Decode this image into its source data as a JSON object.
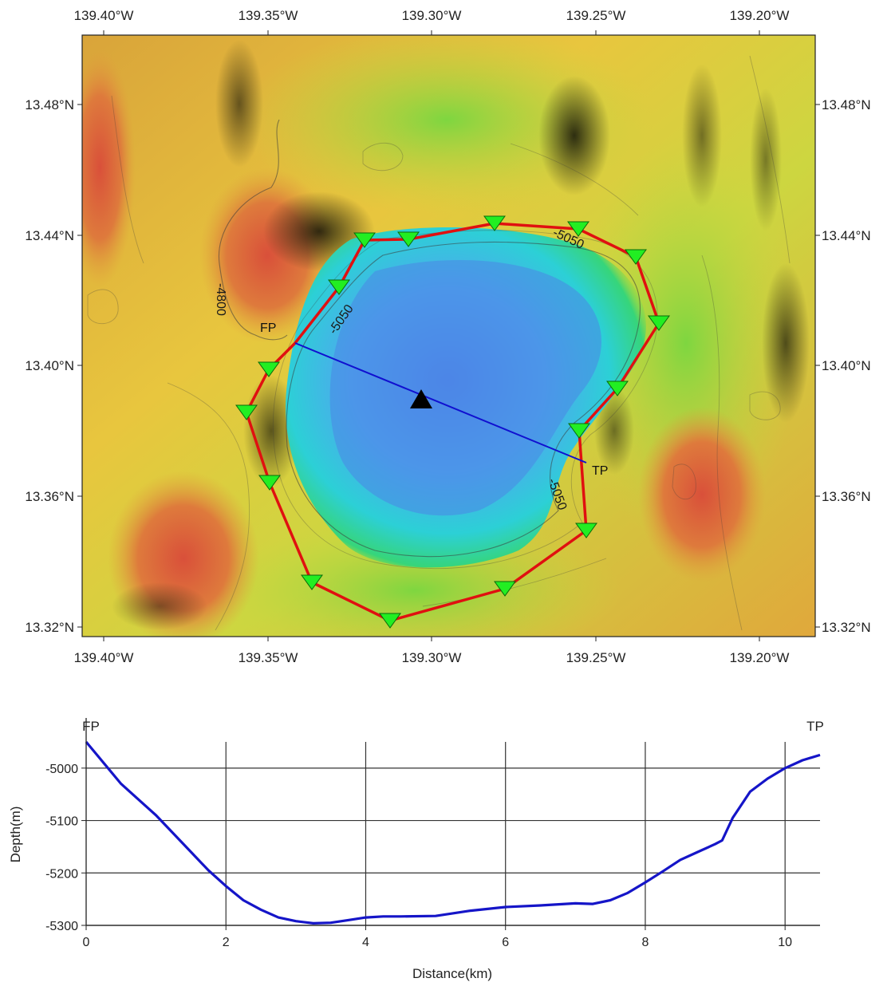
{
  "map": {
    "lon_ticks": [
      "139.40°W",
      "139.35°W",
      "139.30°W",
      "139.25°W",
      "139.20°W"
    ],
    "lat_ticks": [
      "13.48°N",
      "13.44°N",
      "13.40°N",
      "13.36°N",
      "13.32°N"
    ],
    "contour_labels": [
      "-4800",
      "-5050",
      "-5050",
      "-5050"
    ],
    "profile_start_label": "FP",
    "profile_end_label": "TP",
    "colors": {
      "survey_line": "#e01010",
      "station_marker": "#22ee22",
      "profile_line": "#1010d0",
      "center_marker": "#000000",
      "deep_basin": "#4a88e6",
      "high_relief": "#d95a3a"
    },
    "station_count": 16
  },
  "chart_data": {
    "type": "line",
    "title": "",
    "xlabel": "Distance(km)",
    "ylabel": "Depth(m)",
    "xlim": [
      0,
      10.5
    ],
    "ylim": [
      -5300,
      -4950
    ],
    "x_ticks": [
      "0",
      "2",
      "4",
      "6",
      "8",
      "10"
    ],
    "y_ticks": [
      "-5000",
      "-5100",
      "-5200",
      "-5300"
    ],
    "start_label": "FP",
    "end_label": "TP",
    "grid": true,
    "series": [
      {
        "color": "#1515c8",
        "x": [
          0,
          0.25,
          0.5,
          0.75,
          1.0,
          1.25,
          1.5,
          1.75,
          2.0,
          2.25,
          2.5,
          2.75,
          3.0,
          3.25,
          3.5,
          3.75,
          4.0,
          4.25,
          4.5,
          5.0,
          5.5,
          6.0,
          6.5,
          7.0,
          7.25,
          7.5,
          7.75,
          8.0,
          8.25,
          8.5,
          8.75,
          9.0,
          9.1,
          9.25,
          9.5,
          9.75,
          10.0,
          10.25,
          10.5
        ],
        "y": [
          -4950,
          -4990,
          -5030,
          -5060,
          -5090,
          -5125,
          -5160,
          -5195,
          -5225,
          -5252,
          -5270,
          -5285,
          -5292,
          -5296,
          -5295,
          -5290,
          -5285,
          -5283,
          -5283,
          -5282,
          -5272,
          -5265,
          -5262,
          -5258,
          -5259,
          -5252,
          -5238,
          -5218,
          -5197,
          -5175,
          -5160,
          -5145,
          -5138,
          -5095,
          -5045,
          -5020,
          -5000,
          -4985,
          -4975
        ]
      }
    ]
  }
}
